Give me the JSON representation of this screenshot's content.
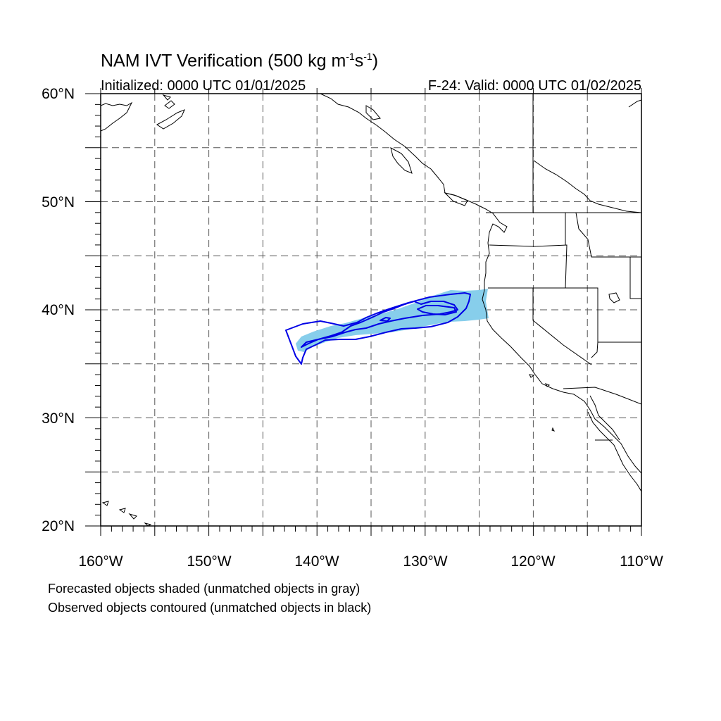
{
  "header": {
    "title_prefix": "NAM IVT Verification (500 kg m",
    "exp1": "-1",
    "title_mid": "s",
    "exp2": "-1",
    "title_suffix": ")",
    "initialized": "Initialized: 0000 UTC 01/01/2025",
    "valid": "F-24: Valid: 0000 UTC 01/02/2025"
  },
  "axes": {
    "lat_labels": [
      "60°N",
      "50°N",
      "40°N",
      "30°N",
      "20°N"
    ],
    "lon_labels": [
      "160°W",
      "150°W",
      "140°W",
      "130°W",
      "120°W",
      "110°W"
    ],
    "lat_range": [
      20,
      60
    ],
    "lon_range": [
      -160,
      -110
    ],
    "major_lat_step": 5,
    "major_lon_step": 5,
    "grid": "dashed"
  },
  "legend_notes": {
    "forecast": "Forecasted objects shaded (unmatched objects in gray)",
    "observed": "Observed objects contoured (unmatched objects in black)"
  },
  "colors": {
    "forecast_fill": "#87ceeb",
    "observed_contour": "#0000e6",
    "coast": "#000000"
  }
}
